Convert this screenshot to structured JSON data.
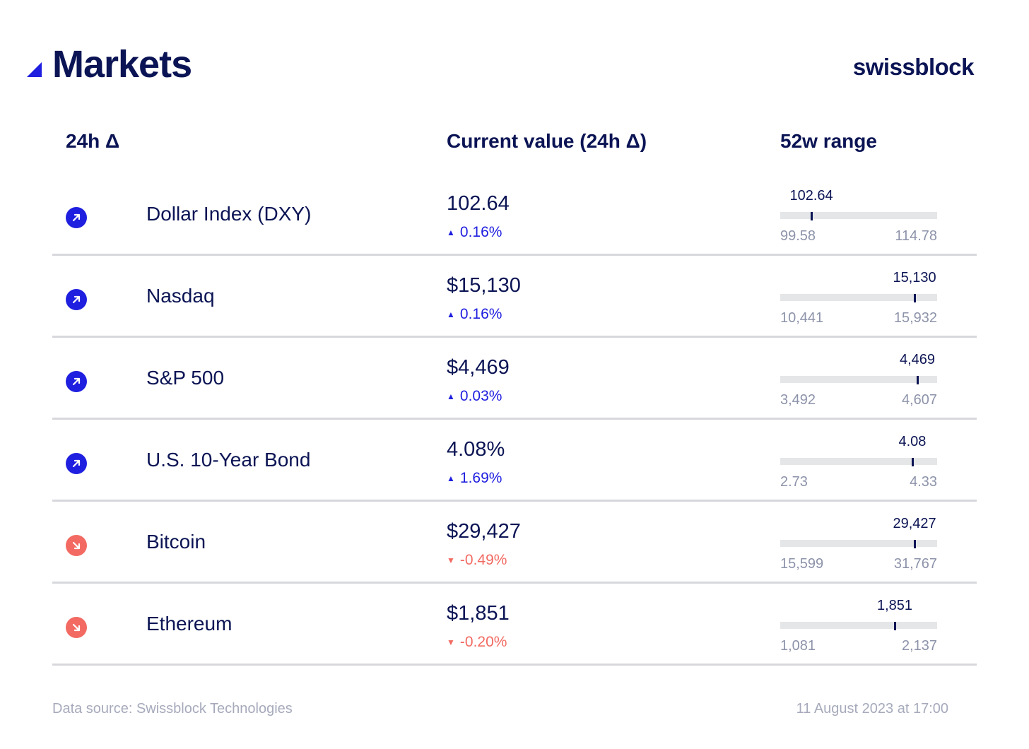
{
  "header": {
    "title": "Markets",
    "brand": "swissblock"
  },
  "columns": {
    "change": "24h Δ",
    "current": "Current value (24h Δ)",
    "range": "52w range"
  },
  "colors": {
    "accent": "#1f1fe0",
    "negative": "#f26a62",
    "text": "#0b1454",
    "muted": "#8d93aa"
  },
  "rows": [
    {
      "direction": "up",
      "icon": "arrow-up-right-icon",
      "name": "Dollar Index (DXY)",
      "value": "102.64",
      "delta": "0.16%",
      "range_current": "102.64",
      "range_min": "99.58",
      "range_max": "114.78",
      "level": 0.2
    },
    {
      "direction": "up",
      "icon": "arrow-up-right-icon",
      "name": "Nasdaq",
      "value": "$15,130",
      "delta": "0.16%",
      "range_current": "15,130",
      "range_min": "10,441",
      "range_max": "15,932",
      "level": 0.854
    },
    {
      "direction": "up",
      "icon": "arrow-up-right-icon",
      "name": "S&P 500",
      "value": "$4,469",
      "delta": "0.03%",
      "range_current": "4,469",
      "range_min": "3,492",
      "range_max": "4,607",
      "level": 0.876
    },
    {
      "direction": "up",
      "icon": "arrow-up-right-icon",
      "name": "U.S. 10-Year Bond",
      "value": "4.08%",
      "delta": "1.69%",
      "range_current": "4.08",
      "range_min": "2.73",
      "range_max": "4.33",
      "level": 0.844
    },
    {
      "direction": "down",
      "icon": "arrow-down-right-icon",
      "name": "Bitcoin",
      "value": "$29,427",
      "delta": "-0.49%",
      "range_current": "29,427",
      "range_min": "15,599",
      "range_max": "31,767",
      "level": 0.855
    },
    {
      "direction": "down",
      "icon": "arrow-down-right-icon",
      "name": "Ethereum",
      "value": "$1,851",
      "delta": "-0.20%",
      "range_current": "1,851",
      "range_min": "1,081",
      "range_max": "2,137",
      "level": 0.729
    }
  ],
  "footer": {
    "source": "Data source: Swissblock Technologies",
    "timestamp": "11 August 2023 at 17:00"
  }
}
